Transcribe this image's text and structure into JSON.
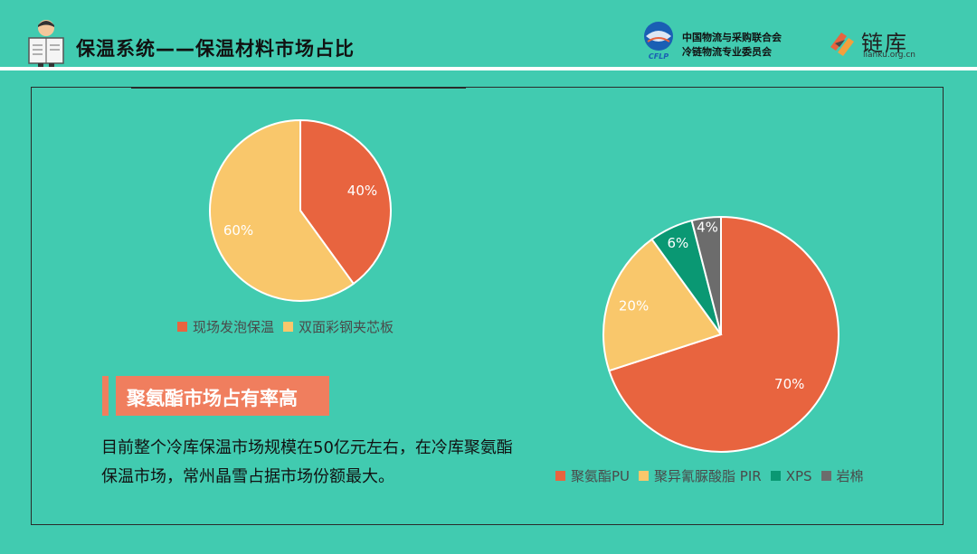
{
  "header": {
    "title": "保温系统——保温材料市场占比",
    "org_line1": "中国物流与采购联合会",
    "org_line2": "冷链物流专业委员会",
    "cflp_text": "CFLP",
    "lianku_name": "链库",
    "lianku_url": "lianku.org.cn"
  },
  "highlight": {
    "heading": "聚氨酯市场占有率高",
    "body": "目前整个冷库保温市场规模在50亿元左右，在冷库聚氨酯保温市场，常州晶雪占据市场份额最大。"
  },
  "chart_data": [
    {
      "type": "pie",
      "categories": [
        "现场发泡保温",
        "双面彩钢夹芯板"
      ],
      "values": [
        40,
        60
      ],
      "labels": [
        "40%",
        "60%"
      ],
      "colors": [
        "#e8643f",
        "#f9c76b"
      ],
      "legend": "bottom"
    },
    {
      "type": "pie",
      "categories": [
        "聚氨酯PU",
        "聚异氰脲酸脂 PIR",
        "XPS",
        "岩棉"
      ],
      "values": [
        70,
        20,
        6,
        4
      ],
      "labels": [
        "70%",
        "20%",
        "6%",
        "4%"
      ],
      "colors": [
        "#e8643f",
        "#f9c76b",
        "#0a9873",
        "#6c6c6c"
      ],
      "legend": "bottom"
    }
  ]
}
